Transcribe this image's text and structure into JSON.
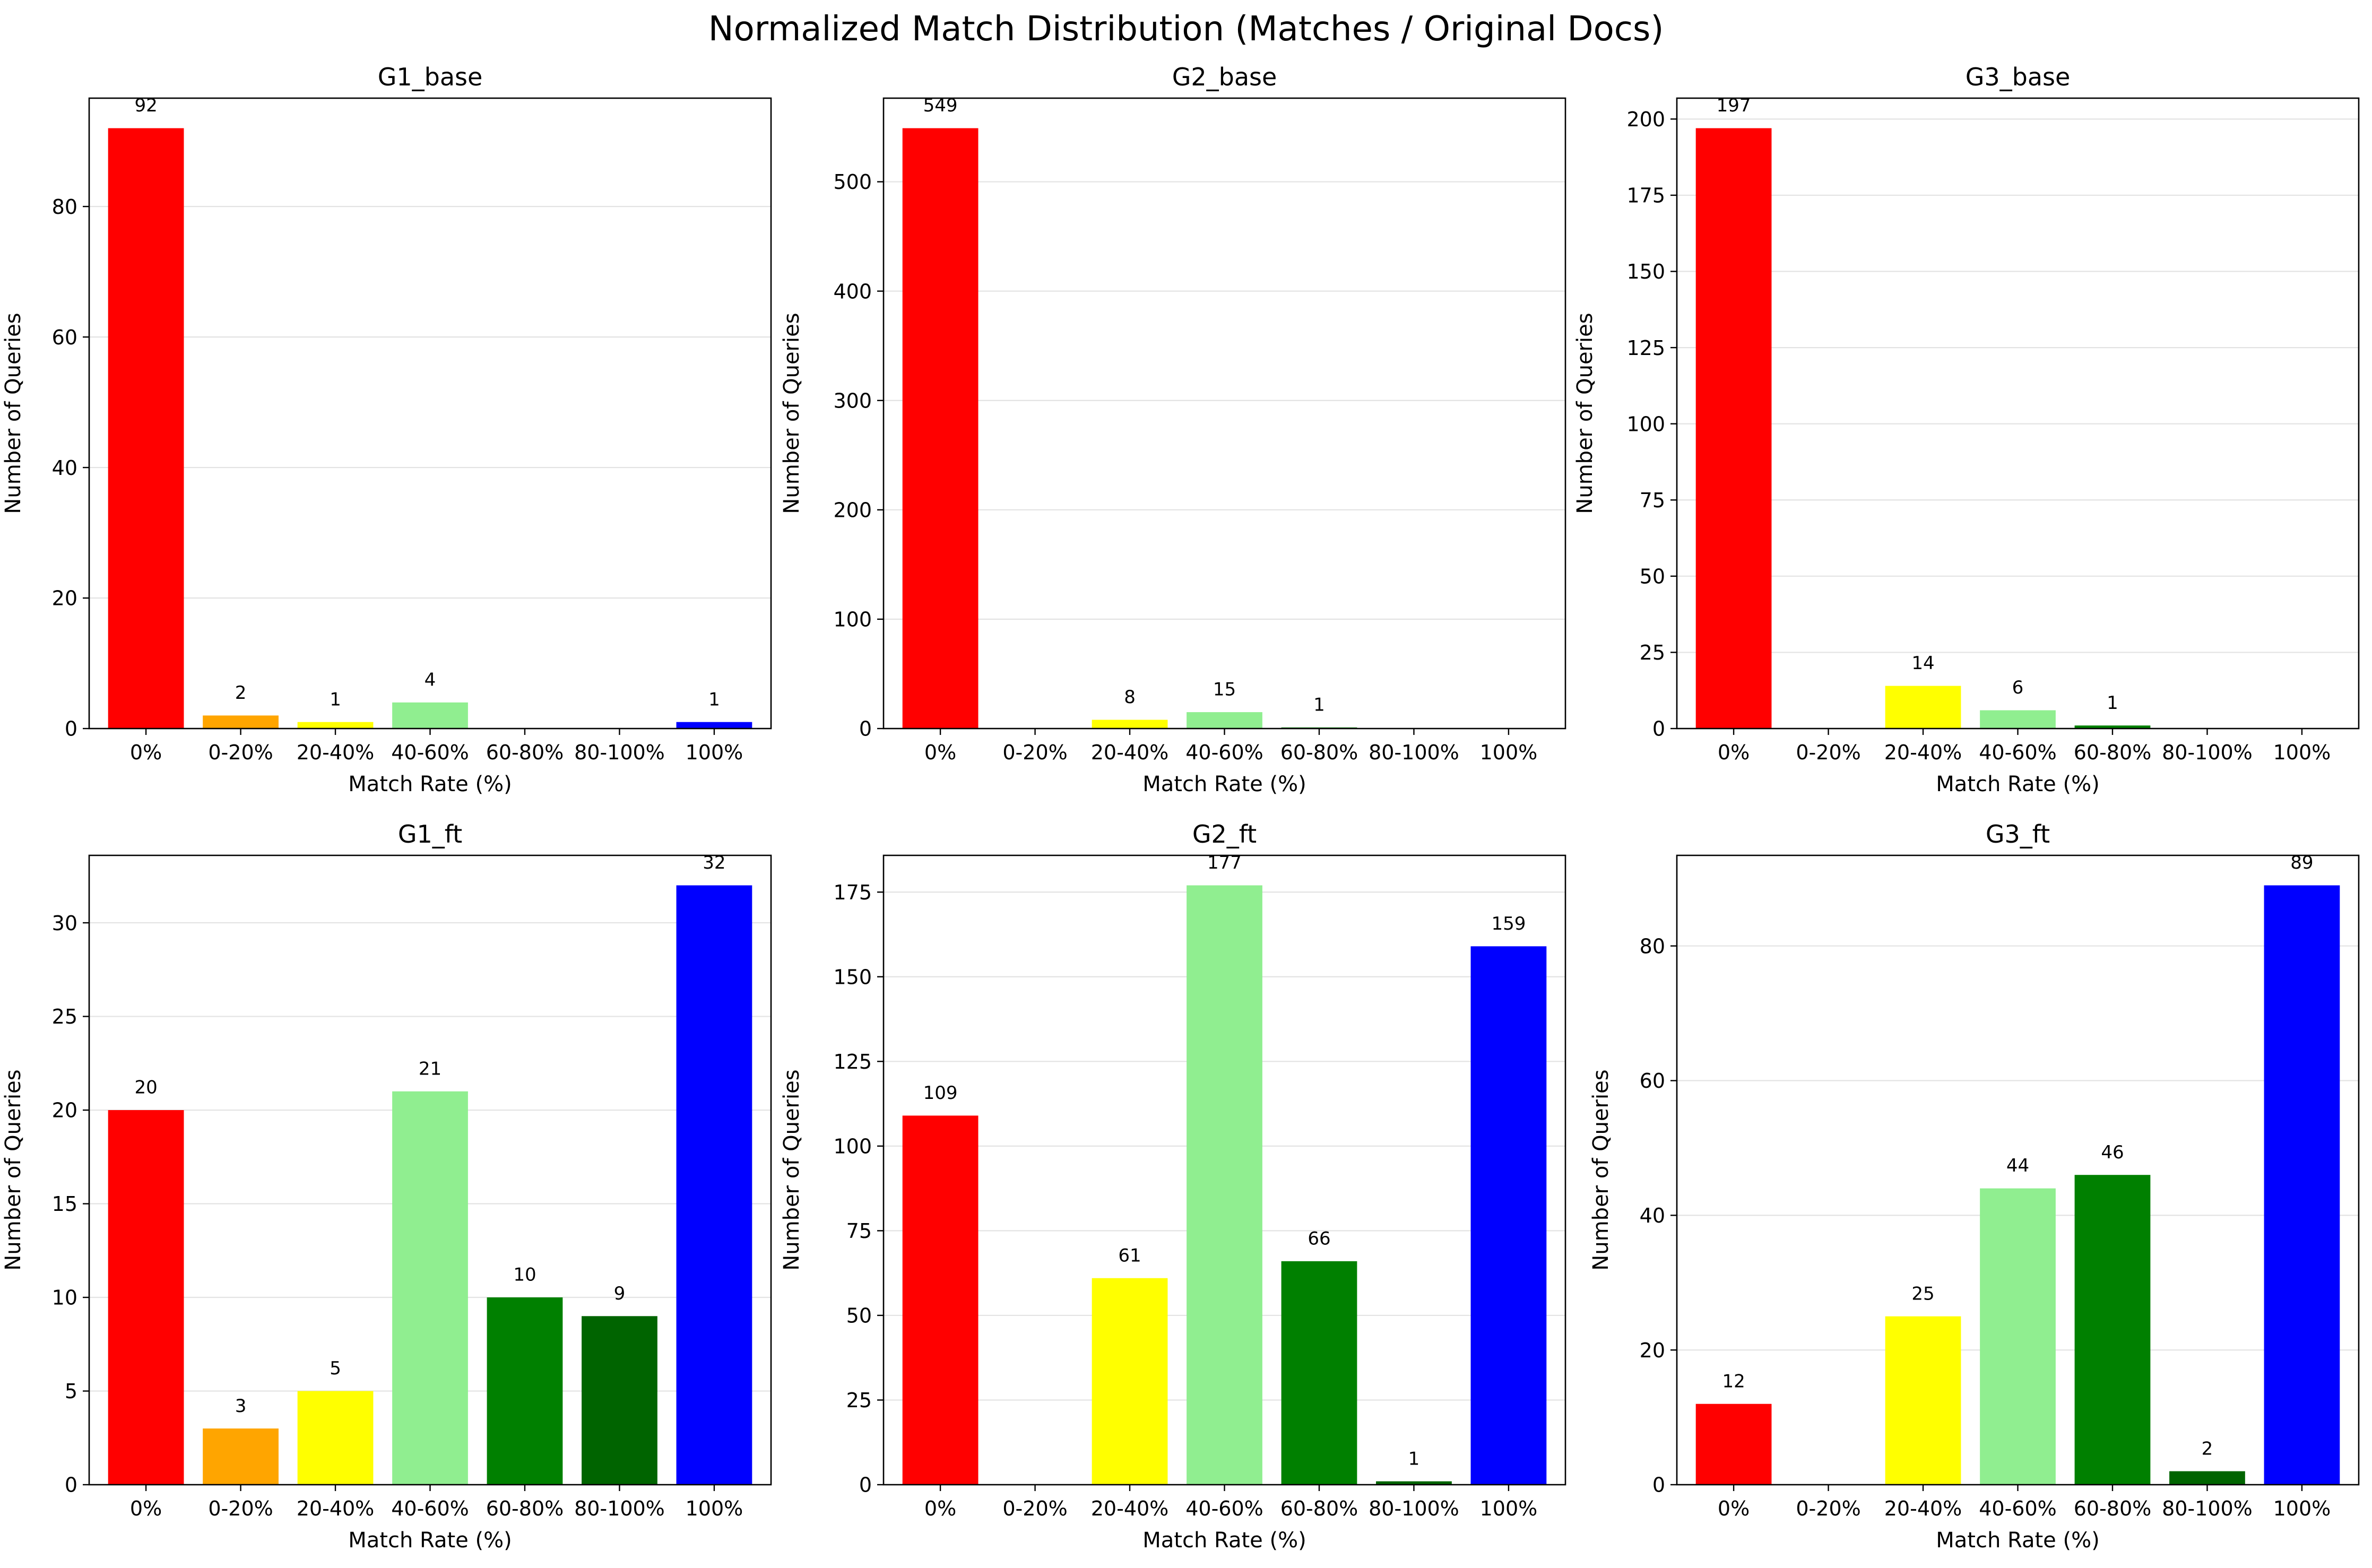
{
  "suptitle": "Normalized Match Distribution (Matches / Original Docs)",
  "colors": [
    "#ff0000",
    "#ffa500",
    "#ffff00",
    "#90ee90",
    "#008000",
    "#006400",
    "#0000ff"
  ],
  "chart_data": [
    {
      "type": "bar",
      "title": "G1_base",
      "categories": [
        "0%",
        "0-20%",
        "20-40%",
        "40-60%",
        "60-80%",
        "80-100%",
        "100%"
      ],
      "values": [
        92,
        2,
        1,
        4,
        0,
        0,
        1
      ],
      "data_labels": [
        "92",
        "2",
        "1",
        "4",
        "",
        "",
        "1"
      ],
      "xlabel": "Match Rate (%)",
      "ylabel": "Number of Queries",
      "ylim": [
        0,
        96.6
      ],
      "yticks": [
        0,
        20,
        40,
        60,
        80
      ],
      "grid": "y"
    },
    {
      "type": "bar",
      "title": "G2_base",
      "categories": [
        "0%",
        "0-20%",
        "20-40%",
        "40-60%",
        "60-80%",
        "80-100%",
        "100%"
      ],
      "values": [
        549,
        0,
        8,
        15,
        1,
        0,
        0
      ],
      "data_labels": [
        "549",
        "",
        "8",
        "15",
        "1",
        "",
        ""
      ],
      "xlabel": "Match Rate (%)",
      "ylabel": "Number of Queries",
      "ylim": [
        0,
        576.45
      ],
      "yticks": [
        0,
        100,
        200,
        300,
        400,
        500
      ],
      "grid": "y"
    },
    {
      "type": "bar",
      "title": "G3_base",
      "categories": [
        "0%",
        "0-20%",
        "20-40%",
        "40-60%",
        "60-80%",
        "80-100%",
        "100%"
      ],
      "values": [
        197,
        0,
        14,
        6,
        1,
        0,
        0
      ],
      "data_labels": [
        "197",
        "",
        "14",
        "6",
        "1",
        "",
        ""
      ],
      "xlabel": "Match Rate (%)",
      "ylabel": "Number of Queries",
      "ylim": [
        0,
        206.85
      ],
      "yticks": [
        0,
        25,
        50,
        75,
        100,
        125,
        150,
        175,
        200
      ],
      "grid": "y"
    },
    {
      "type": "bar",
      "title": "G1_ft",
      "categories": [
        "0%",
        "0-20%",
        "20-40%",
        "40-60%",
        "60-80%",
        "80-100%",
        "100%"
      ],
      "values": [
        20,
        3,
        5,
        21,
        10,
        9,
        32
      ],
      "data_labels": [
        "20",
        "3",
        "5",
        "21",
        "10",
        "9",
        "32"
      ],
      "xlabel": "Match Rate (%)",
      "ylabel": "Number of Queries",
      "ylim": [
        0,
        33.6
      ],
      "yticks": [
        0,
        5,
        10,
        15,
        20,
        25,
        30
      ],
      "grid": "y"
    },
    {
      "type": "bar",
      "title": "G2_ft",
      "categories": [
        "0%",
        "0-20%",
        "20-40%",
        "40-60%",
        "60-80%",
        "80-100%",
        "100%"
      ],
      "values": [
        109,
        0,
        61,
        177,
        66,
        1,
        159
      ],
      "data_labels": [
        "109",
        "",
        "61",
        "177",
        "66",
        "1",
        "159"
      ],
      "xlabel": "Match Rate (%)",
      "ylabel": "Number of Queries",
      "ylim": [
        0,
        185.85
      ],
      "yticks": [
        0,
        25,
        50,
        75,
        100,
        125,
        150,
        175
      ],
      "grid": "y"
    },
    {
      "type": "bar",
      "title": "G3_ft",
      "categories": [
        "0%",
        "0-20%",
        "20-40%",
        "40-60%",
        "60-80%",
        "80-100%",
        "100%"
      ],
      "values": [
        12,
        0,
        25,
        44,
        46,
        2,
        89
      ],
      "data_labels": [
        "12",
        "",
        "25",
        "44",
        "46",
        "2",
        "89"
      ],
      "xlabel": "Match Rate (%)",
      "ylabel": "Number of Queries",
      "ylim": [
        0,
        93.45
      ],
      "yticks": [
        0,
        20,
        40,
        60,
        80
      ],
      "grid": "y"
    }
  ]
}
